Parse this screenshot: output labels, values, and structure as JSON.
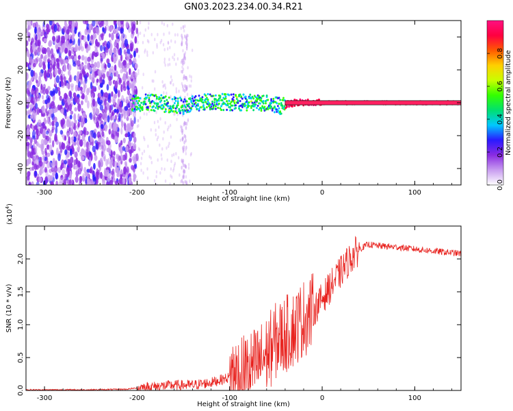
{
  "title": "GN03.2023.234.00.34.R21",
  "chart_data": [
    {
      "type": "heatmap",
      "xlabel": "Height of straight line (km)",
      "ylabel": "Frequency (Hz)",
      "xlim": [
        -320,
        150
      ],
      "ylim": [
        -50,
        50
      ],
      "xticks": [
        -300,
        -200,
        -100,
        0,
        100
      ],
      "yticks": [
        -40,
        -20,
        0,
        20,
        40
      ],
      "colorbar": {
        "label": "Normalized spectral amplitude",
        "range": [
          0.0,
          1.0
        ],
        "ticks": [
          0.0,
          0.2,
          0.4,
          0.6,
          0.8
        ],
        "colors": [
          "#ffffff",
          "#c89cf0",
          "#8a2be2",
          "#2a1aff",
          "#00c8ff",
          "#00e070",
          "#33ff00",
          "#c8ff00",
          "#ffd000",
          "#ff5a00",
          "#ff0040",
          "#ff1080"
        ]
      },
      "features": {
        "noise_region_x": [
          -320,
          -200
        ],
        "sparse_noise_x": [
          -200,
          -140
        ],
        "narrow_line_x": [
          -205,
          150
        ],
        "line_frequency_trend": [
          [
            -205,
            0
          ],
          [
            -180,
            0
          ],
          [
            -150,
            -2
          ],
          [
            -120,
            1
          ],
          [
            -90,
            0
          ],
          [
            -60,
            0
          ],
          [
            -45,
            -2
          ],
          [
            -30,
            0
          ],
          [
            0,
            0
          ],
          [
            150,
            0
          ]
        ]
      }
    },
    {
      "type": "line",
      "xlabel": "Height of straight line (km)",
      "ylabel": "SNR (10 * v/v)",
      "scale_label": "(x10",
      "scale_exp": "4",
      "scale_close": ")",
      "xlim": [
        -320,
        150
      ],
      "ylim": [
        0,
        2.5
      ],
      "xticks": [
        -300,
        -200,
        -100,
        0,
        100
      ],
      "yticks": [
        "0.0",
        "0.5",
        "1.0",
        "1.5",
        "2.0"
      ],
      "series": [
        {
          "color": "#e8231f",
          "x": [
            -320,
            -250,
            -210,
            -200,
            -180,
            -160,
            -140,
            -120,
            -100,
            -90,
            -80,
            -70,
            -60,
            -50,
            -40,
            -30,
            -20,
            -10,
            0,
            10,
            20,
            30,
            40,
            50,
            60,
            80,
            100,
            120,
            150
          ],
          "y": [
            0.01,
            0.01,
            0.02,
            0.04,
            0.06,
            0.08,
            0.08,
            0.12,
            0.2,
            0.25,
            0.3,
            0.4,
            0.55,
            0.75,
            0.85,
            0.95,
            1.1,
            1.2,
            1.4,
            1.6,
            1.8,
            2.0,
            2.15,
            2.22,
            2.2,
            2.18,
            2.15,
            2.12,
            2.08
          ]
        }
      ]
    }
  ]
}
